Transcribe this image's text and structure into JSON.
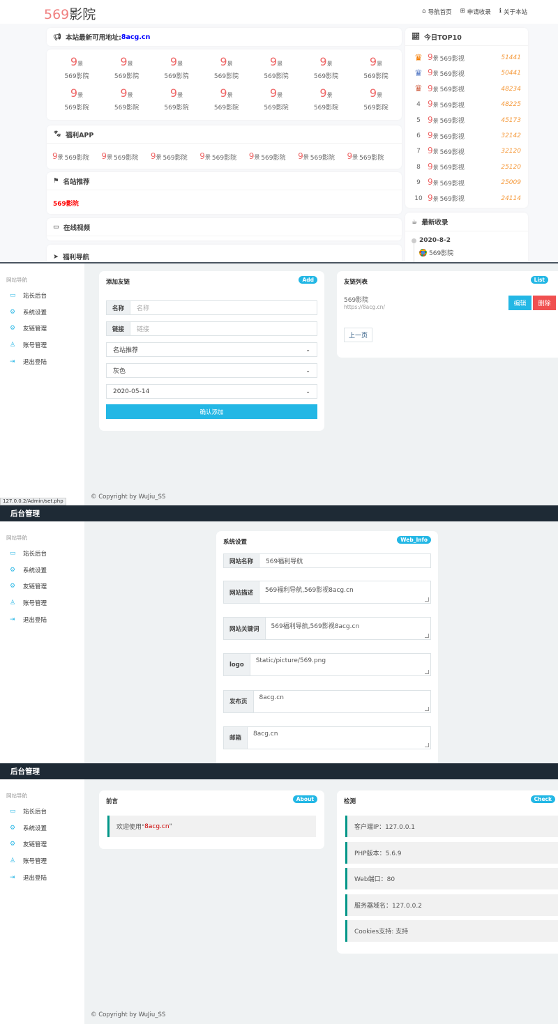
{
  "front": {
    "logo": {
      "num": "569",
      "text": "影院"
    },
    "nav": [
      {
        "icon": "home-icon",
        "glyph": "⌂",
        "label": "导航首页"
      },
      {
        "icon": "plus-square-icon",
        "glyph": "⊞",
        "label": "申请收录"
      },
      {
        "icon": "info-icon",
        "glyph": "ℹ",
        "label": "关于本站"
      }
    ],
    "notice": {
      "label": "本站最新可用地址:",
      "link": "8acg.cn"
    },
    "grid_items": [
      "569影院",
      "569影院",
      "569影院",
      "569影院",
      "569影院",
      "569影院",
      "569影院",
      "569影院",
      "569影院",
      "569影院",
      "569影院",
      "569影院",
      "569影院",
      "569影院"
    ],
    "icon_text": {
      "num": "9",
      "char": "景"
    },
    "sections": {
      "app": "福利APP",
      "famous": "名站推荐",
      "video": "在线视频",
      "nav": "福利导航"
    },
    "app_items": [
      "569影院",
      "569影院",
      "569影院",
      "569影院",
      "569影院",
      "569影院",
      "569影院"
    ],
    "famous_item": "569影院",
    "top10": {
      "title": "今日TOP10",
      "rows": [
        {
          "rank": "1",
          "name": "569影视",
          "count": "51441"
        },
        {
          "rank": "2",
          "name": "569影视",
          "count": "50441"
        },
        {
          "rank": "3",
          "name": "569影视",
          "count": "48234"
        },
        {
          "rank": "4",
          "name": "569影视",
          "count": "48225"
        },
        {
          "rank": "5",
          "name": "569影视",
          "count": "45173"
        },
        {
          "rank": "6",
          "name": "569影视",
          "count": "32142"
        },
        {
          "rank": "7",
          "name": "569影视",
          "count": "32120"
        },
        {
          "rank": "8",
          "name": "569影视",
          "count": "25120"
        },
        {
          "rank": "9",
          "name": "569影视",
          "count": "25009"
        },
        {
          "rank": "10",
          "name": "569影视",
          "count": "24114"
        }
      ],
      "crown_colors": [
        "#f57c00",
        "#5c7fc7",
        "#d2694e"
      ]
    },
    "latest": {
      "title": "最新收录",
      "date": "2020-8-2",
      "item": "569影院"
    },
    "colors": {
      "accent_red": "#e66",
      "count": "#f59a3c",
      "link_blue": "#0000ff",
      "famous_red": "#ff0000"
    }
  },
  "admin": {
    "header_title": "后台管理",
    "sidebar": {
      "title": "网站导航",
      "items": [
        {
          "icon": "monitor-icon",
          "glyph": "▭",
          "label": "站长后台"
        },
        {
          "icon": "gear-icon",
          "glyph": "⚙",
          "label": "系统设置"
        },
        {
          "icon": "gear-icon",
          "glyph": "⚙",
          "label": "友链管理"
        },
        {
          "icon": "user-icon",
          "glyph": "♙",
          "label": "账号管理"
        },
        {
          "icon": "logout-icon",
          "glyph": "⇥",
          "label": "退出登陆"
        }
      ]
    },
    "footer": "© Copyright by WuJiu_SS",
    "status_url": "127.0.0.2/Admin/set.php",
    "add_link": {
      "title": "添加友链",
      "badge": "Add",
      "name_label": "名称",
      "name_placeholder": "名称",
      "link_label": "链接",
      "link_placeholder": "链接",
      "category": "名站推荐",
      "color": "灰色",
      "date": "2020-05-14",
      "submit": "确认添加"
    },
    "link_list": {
      "title": "友链列表",
      "badge": "List",
      "items": [
        {
          "name": "569影院",
          "url": "https://8acg.cn/"
        }
      ],
      "edit": "编辑",
      "delete": "删除",
      "prev": "上一页"
    },
    "settings": {
      "title": "系统设置",
      "badge": "Web_Info",
      "fields": [
        {
          "label": "网站名称",
          "value": "569福利导航"
        },
        {
          "label": "网站描述",
          "value": "569福利导航,569影视8acg.cn"
        },
        {
          "label": "网站关键词",
          "value": "569福利导航,569影视8acg.cn"
        },
        {
          "label": "logo",
          "value": "Static/picture/569.png"
        },
        {
          "label": "发布页",
          "value": "8acg.cn"
        },
        {
          "label": "邮箱",
          "value": "8acg.cn"
        }
      ]
    },
    "about": {
      "title": "前言",
      "badge": "About",
      "prefix": "欢迎使用\"",
      "site": "8acg.cn",
      "suffix": "\""
    },
    "check": {
      "title": "检测",
      "badge": "Check",
      "rows": [
        "客户端IP：127.0.0.1",
        "PHP版本：5.6.9",
        "Web端口：80",
        "服务器域名：127.0.0.2",
        "Cookies支持: 支持"
      ]
    },
    "colors": {
      "header": "#1e2a35",
      "badge": "#23b7e5",
      "delete": "#f05050",
      "info_border": "#009688"
    }
  }
}
